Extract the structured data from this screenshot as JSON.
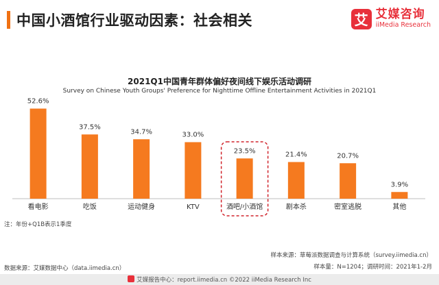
{
  "header": {
    "title": "中国小酒馆行业驱动因素：社会相关",
    "accent_color": "#f07113"
  },
  "logo": {
    "mark_char": "艾",
    "name_cn": "艾媒咨询",
    "name_en": "iiMedia Research",
    "color": "#e8303a"
  },
  "chart_data": {
    "type": "bar",
    "title": "2021Q1中国青年群体偏好夜间线下娱乐活动调研",
    "subtitle": "Survey on Chinese Youth Groups' Preference for Nighttime Offline Entertainment Activities in 2021Q1",
    "categories": [
      "看电影",
      "吃饭",
      "运动健身",
      "KTV",
      "酒吧/小酒馆",
      "剧本杀",
      "密室逃脱",
      "其他"
    ],
    "values": [
      52.6,
      37.5,
      34.7,
      33.0,
      23.5,
      21.4,
      20.7,
      3.9
    ],
    "value_labels": [
      "52.6%",
      "37.5%",
      "34.7%",
      "33.0%",
      "23.5%",
      "21.4%",
      "20.7%",
      "3.9%"
    ],
    "unit": "%",
    "ylim": [
      0,
      60
    ],
    "bar_color": "#f57a1f",
    "highlight_index": 4,
    "highlight_color": "#d0222a",
    "grid": false
  },
  "notes": {
    "note": "注：年份+Q1B表示1季度",
    "sample_source": "样本来源：草莓派数据调查与计算系统（survey.iimedia.cn）",
    "sample_size": "样本量：N=1204；调研时间：2021年1-2月",
    "data_source": "数据来源：艾媒数据中心（data.iimedia.cn）"
  },
  "footer": {
    "text": "艾媒报告中心：report.iimedia.cn  ©2022  iiMedia Research  Inc"
  }
}
